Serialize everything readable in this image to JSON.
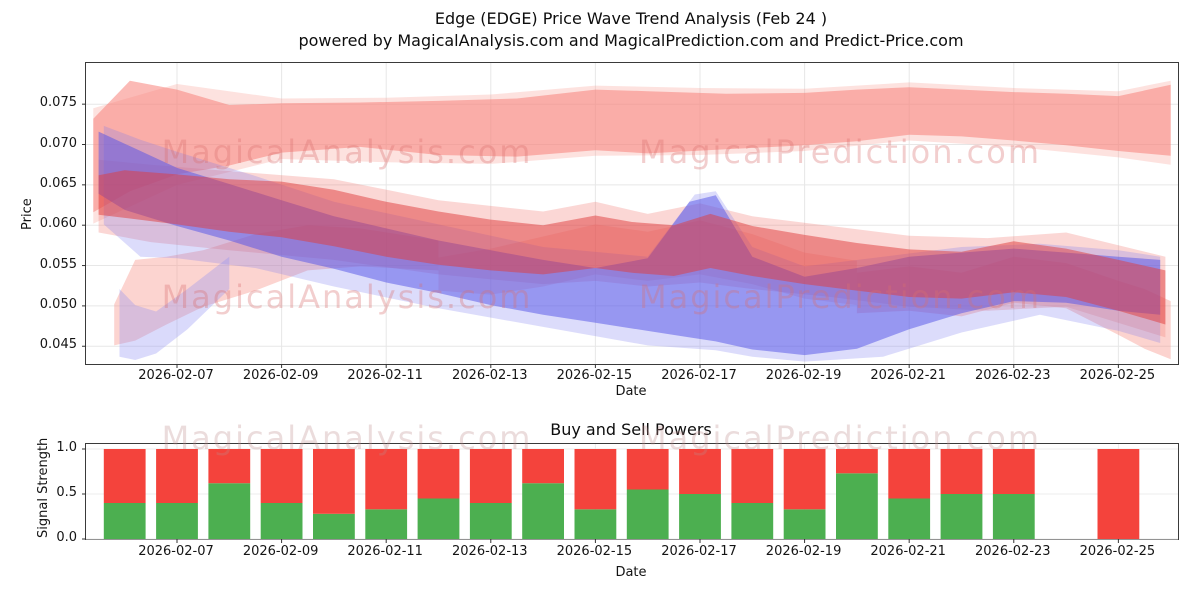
{
  "figure": {
    "title_line1": "Edge (EDGE) Price Wave Trend Analysis (Feb 24 )",
    "title_line2": "powered by MagicalAnalysis.com and MagicalPrediction.com and Predict-Price.com",
    "watermark_left": "MagicalAnalysis.com",
    "watermark_right": "MagicalPrediction.com"
  },
  "chart_data": [
    {
      "type": "area",
      "name": "price-wave-trend",
      "xlabel": "Date",
      "ylabel": "Price",
      "grid": true,
      "x_domain_days": [
        5.26,
        26.14
      ],
      "y_domain": [
        0.0428,
        0.0801
      ],
      "y_ticks": [
        0.045,
        0.05,
        0.055,
        0.06,
        0.065,
        0.07,
        0.075
      ],
      "x_ticks": [
        {
          "day": 7,
          "label": "2026-02-07"
        },
        {
          "day": 9,
          "label": "2026-02-09"
        },
        {
          "day": 11,
          "label": "2026-02-11"
        },
        {
          "day": 13,
          "label": "2026-02-13"
        },
        {
          "day": 15,
          "label": "2026-02-15"
        },
        {
          "day": 17,
          "label": "2026-02-17"
        },
        {
          "day": 19,
          "label": "2026-02-19"
        },
        {
          "day": 21,
          "label": "2026-02-21"
        },
        {
          "day": 23,
          "label": "2026-02-23"
        },
        {
          "day": 25,
          "label": "2026-02-25"
        }
      ],
      "bands": [
        {
          "name": "resistance-halo",
          "color": "#fa9e96",
          "opacity": 0.3,
          "days": [
            5.4,
            7,
            9,
            11,
            13,
            15,
            17,
            19,
            21,
            23,
            25,
            26.0
          ],
          "upper": [
            0.0745,
            0.0775,
            0.0757,
            0.0758,
            0.0762,
            0.0773,
            0.077,
            0.0769,
            0.0777,
            0.077,
            0.0766,
            0.0779
          ],
          "lower": [
            0.0602,
            0.065,
            0.0682,
            0.0678,
            0.0676,
            0.0686,
            0.0687,
            0.0692,
            0.0705,
            0.0697,
            0.0684,
            0.0675
          ]
        },
        {
          "name": "resistance-band",
          "color": "#f8827a",
          "opacity": 0.55,
          "days": [
            5.4,
            6.1,
            7.0,
            8.0,
            9.0,
            10.5,
            12,
            13.5,
            15,
            16,
            17.5,
            19,
            20,
            21,
            22,
            23,
            24,
            25,
            26.0
          ],
          "upper": [
            0.0732,
            0.0779,
            0.0768,
            0.0749,
            0.0751,
            0.0752,
            0.0754,
            0.0757,
            0.0768,
            0.0766,
            0.0763,
            0.0764,
            0.0768,
            0.0771,
            0.0768,
            0.0765,
            0.0763,
            0.076,
            0.0774
          ],
          "lower": [
            0.0616,
            0.0642,
            0.0663,
            0.0674,
            0.069,
            0.0697,
            0.0687,
            0.0685,
            0.0693,
            0.0689,
            0.0694,
            0.0699,
            0.0704,
            0.0712,
            0.071,
            0.0705,
            0.0699,
            0.0692,
            0.0686
          ]
        },
        {
          "name": "left-red-fan",
          "color": "#f89890",
          "opacity": 0.42,
          "days": [
            5.8,
            6.2,
            6.8,
            7.5,
            8.5,
            9.5,
            10.5,
            12
          ],
          "upper": [
            0.0502,
            0.0557,
            0.0561,
            0.0569,
            0.0589,
            0.06,
            0.0596,
            0.0581
          ],
          "lower": [
            0.0451,
            0.0457,
            0.0477,
            0.0499,
            0.0519,
            0.0544,
            0.0549,
            0.0544
          ]
        },
        {
          "name": "red-halo",
          "color": "#f07068",
          "opacity": 0.28,
          "days": [
            5.5,
            6.5,
            8,
            10,
            12,
            14,
            15,
            16,
            17,
            18,
            19.5,
            21,
            22.5,
            24,
            25.9
          ],
          "upper": [
            0.0681,
            0.0675,
            0.0667,
            0.0657,
            0.0631,
            0.0617,
            0.0629,
            0.0614,
            0.0627,
            0.0611,
            0.0599,
            0.0587,
            0.0584,
            0.0591,
            0.0561
          ],
          "lower": [
            0.0591,
            0.0579,
            0.0569,
            0.0557,
            0.0539,
            0.0527,
            0.0531,
            0.0524,
            0.0529,
            0.0521,
            0.0511,
            0.0499,
            0.0494,
            0.0499,
            0.0461
          ]
        },
        {
          "name": "mid-red-soft",
          "color": "#f58c84",
          "opacity": 0.3,
          "days": [
            12,
            13,
            14,
            15,
            16,
            17,
            18,
            19,
            20
          ],
          "upper": [
            0.056,
            0.0571,
            0.0586,
            0.0601,
            0.0592,
            0.0606,
            0.0589,
            0.0566,
            0.0556
          ],
          "lower": [
            0.0519,
            0.0514,
            0.0524,
            0.0539,
            0.0531,
            0.0539,
            0.0527,
            0.0509,
            0.0501
          ]
        },
        {
          "name": "right-red-lower",
          "color": "#f88c80",
          "opacity": 0.38,
          "days": [
            20,
            21,
            22,
            23,
            24,
            25,
            25.5,
            26.0
          ],
          "upper": [
            0.0541,
            0.0549,
            0.0541,
            0.0561,
            0.0553,
            0.0531,
            0.0521,
            0.0506
          ],
          "lower": [
            0.0491,
            0.0494,
            0.0487,
            0.0504,
            0.0497,
            0.0464,
            0.0447,
            0.0434
          ]
        },
        {
          "name": "blue-halo",
          "color": "#7878f0",
          "opacity": 0.26,
          "days": [
            5.6,
            6.3,
            7,
            8.5,
            10,
            12,
            14,
            16,
            16.9,
            17.3,
            18,
            19,
            20.5,
            22,
            23.5,
            25,
            25.8
          ],
          "upper": [
            0.0723,
            0.0706,
            0.0691,
            0.0661,
            0.0629,
            0.0601,
            0.0573,
            0.0561,
            0.0638,
            0.0642,
            0.0573,
            0.0549,
            0.0561,
            0.0573,
            0.0577,
            0.0569,
            0.0561
          ],
          "lower": [
            0.0601,
            0.0561,
            0.0559,
            0.0547,
            0.0524,
            0.0497,
            0.0474,
            0.0451,
            0.0447,
            0.0445,
            0.0437,
            0.0431,
            0.0437,
            0.0467,
            0.0489,
            0.0469,
            0.0454
          ]
        },
        {
          "name": "blue-left-tail",
          "color": "#9090f2",
          "opacity": 0.33,
          "days": [
            5.9,
            6.2,
            6.6,
            7.2,
            8
          ],
          "upper": [
            0.0521,
            0.0501,
            0.0493,
            0.0521,
            0.0561
          ],
          "lower": [
            0.0437,
            0.0433,
            0.0441,
            0.0471,
            0.0521
          ]
        },
        {
          "name": "blue-trend",
          "color": "#5252e8",
          "opacity": 0.5,
          "days": [
            5.5,
            6,
            7,
            8,
            9,
            10,
            11,
            12,
            13,
            14,
            15,
            16,
            16.8,
            17.3,
            18,
            19,
            20,
            21,
            22,
            23,
            24,
            25,
            25.8
          ],
          "upper": [
            0.0716,
            0.0701,
            0.0671,
            0.0651,
            0.0631,
            0.0611,
            0.0596,
            0.0581,
            0.0569,
            0.0557,
            0.0547,
            0.0559,
            0.0629,
            0.0637,
            0.0561,
            0.0536,
            0.0547,
            0.0561,
            0.0566,
            0.0571,
            0.0566,
            0.0561,
            0.0557
          ],
          "lower": [
            0.0639,
            0.0619,
            0.0599,
            0.0581,
            0.0561,
            0.0546,
            0.0529,
            0.0516,
            0.0501,
            0.0489,
            0.0479,
            0.0469,
            0.0461,
            0.0456,
            0.0446,
            0.0439,
            0.0447,
            0.0471,
            0.0491,
            0.0506,
            0.0504,
            0.0494,
            0.0489
          ]
        },
        {
          "name": "support-trend-red",
          "color": "#e03c3c",
          "opacity": 0.5,
          "days": [
            5.5,
            6,
            7,
            8,
            9,
            10,
            11,
            12,
            13,
            14,
            15,
            15.7,
            16.5,
            17.2,
            18,
            19,
            20,
            21,
            22,
            23,
            24,
            25,
            25.9
          ],
          "upper": [
            0.0662,
            0.0668,
            0.0663,
            0.0657,
            0.0654,
            0.0644,
            0.0629,
            0.0617,
            0.0607,
            0.06,
            0.0612,
            0.0604,
            0.06,
            0.0614,
            0.0599,
            0.0588,
            0.0578,
            0.057,
            0.0567,
            0.058,
            0.0571,
            0.0557,
            0.0544
          ],
          "lower": [
            0.0613,
            0.0609,
            0.0601,
            0.0592,
            0.0585,
            0.0574,
            0.0561,
            0.0551,
            0.0544,
            0.0539,
            0.0547,
            0.0541,
            0.0537,
            0.0547,
            0.0537,
            0.0527,
            0.0519,
            0.0511,
            0.0509,
            0.0517,
            0.0511,
            0.0494,
            0.0477
          ]
        }
      ]
    },
    {
      "type": "bar",
      "name": "buy-sell-powers",
      "title": "Buy and Sell Powers",
      "xlabel": "Date",
      "ylabel": "Signal Strength",
      "grid": true,
      "y_ticks": [
        0.0,
        0.5,
        1.0
      ],
      "y_domain": [
        0,
        1.05
      ],
      "bar_width_days": 0.8,
      "buy_color": "#4caf50",
      "sell_color": "#f4433c",
      "x_ticks": [
        {
          "day": 7,
          "label": "2026-02-07"
        },
        {
          "day": 9,
          "label": "2026-02-09"
        },
        {
          "day": 11,
          "label": "2026-02-11"
        },
        {
          "day": 13,
          "label": "2026-02-13"
        },
        {
          "day": 15,
          "label": "2026-02-15"
        },
        {
          "day": 17,
          "label": "2026-02-17"
        },
        {
          "day": 19,
          "label": "2026-02-19"
        },
        {
          "day": 21,
          "label": "2026-02-21"
        },
        {
          "day": 23,
          "label": "2026-02-23"
        },
        {
          "day": 25,
          "label": "2026-02-25"
        }
      ],
      "bars": [
        {
          "date": "2026-02-06",
          "day": 6,
          "buy": 0.4,
          "sell": 0.6
        },
        {
          "date": "2026-02-07",
          "day": 7,
          "buy": 0.4,
          "sell": 0.6
        },
        {
          "date": "2026-02-08",
          "day": 8,
          "buy": 0.62,
          "sell": 0.38
        },
        {
          "date": "2026-02-09",
          "day": 9,
          "buy": 0.4,
          "sell": 0.6
        },
        {
          "date": "2026-02-10",
          "day": 10,
          "buy": 0.28,
          "sell": 0.72
        },
        {
          "date": "2026-02-11",
          "day": 11,
          "buy": 0.33,
          "sell": 0.67
        },
        {
          "date": "2026-02-12",
          "day": 12,
          "buy": 0.45,
          "sell": 0.55
        },
        {
          "date": "2026-02-13",
          "day": 13,
          "buy": 0.4,
          "sell": 0.6
        },
        {
          "date": "2026-02-14",
          "day": 14,
          "buy": 0.62,
          "sell": 0.38
        },
        {
          "date": "2026-02-15",
          "day": 15,
          "buy": 0.33,
          "sell": 0.67
        },
        {
          "date": "2026-02-16",
          "day": 16,
          "buy": 0.55,
          "sell": 0.45
        },
        {
          "date": "2026-02-17",
          "day": 17,
          "buy": 0.5,
          "sell": 0.5
        },
        {
          "date": "2026-02-18",
          "day": 18,
          "buy": 0.4,
          "sell": 0.6
        },
        {
          "date": "2026-02-19",
          "day": 19,
          "buy": 0.33,
          "sell": 0.67
        },
        {
          "date": "2026-02-20",
          "day": 20,
          "buy": 0.73,
          "sell": 0.27
        },
        {
          "date": "2026-02-21",
          "day": 21,
          "buy": 0.45,
          "sell": 0.55
        },
        {
          "date": "2026-02-22",
          "day": 22,
          "buy": 0.5,
          "sell": 0.5
        },
        {
          "date": "2026-02-23",
          "day": 23,
          "buy": 0.5,
          "sell": 0.5
        },
        {
          "date": "2026-02-25",
          "day": 25,
          "buy": 0.0,
          "sell": 1.0
        }
      ]
    }
  ]
}
